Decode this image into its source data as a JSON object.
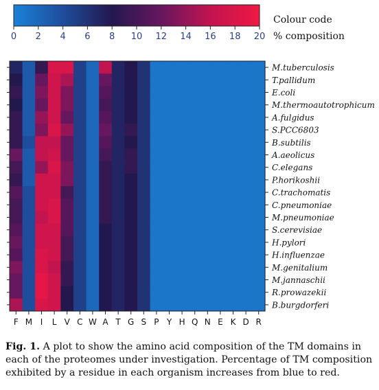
{
  "chart_data": {
    "type": "heatmap",
    "colour_code_label": "Colour code",
    "composition_label": "% composition",
    "colorbar": {
      "ticks": [
        "0",
        "2",
        "4",
        "6",
        "8",
        "10",
        "12",
        "14",
        "16",
        "18",
        "20"
      ],
      "range": [
        0,
        20
      ],
      "colors": [
        "#1a82d8",
        "#1f4d9c",
        "#23184e",
        "#66175e",
        "#c2144f",
        "#f01844"
      ]
    },
    "columns": [
      "F",
      "M",
      "I",
      "L",
      "V",
      "C",
      "W",
      "A",
      "T",
      "G",
      "S",
      "P",
      "Y",
      "H",
      "Q",
      "N",
      "E",
      "K",
      "D",
      "R"
    ],
    "rows": [
      "M.tuberculosis",
      "T.pallidum",
      "E.coli",
      "M.thermoautotrophicum",
      "A.fulgidus",
      "S.PCC6803",
      "B.subtilis",
      "A.aeolicus",
      "C.elegans",
      "P.horikoshii",
      "C.trachomatis",
      "C.pneumoniae",
      "M.pneumoniae",
      "S.cerevisiae",
      "H.pylori",
      "H.influenzae",
      "M.genitalium",
      "M.jannaschii",
      "R.prowazekii",
      "B.burgdorferi"
    ],
    "values": [
      [
        7,
        3,
        9,
        18,
        18,
        5,
        2,
        16,
        7,
        8,
        6,
        1,
        1,
        1,
        1,
        1,
        1,
        1,
        1,
        1
      ],
      [
        8,
        3,
        12,
        17,
        15,
        5,
        2,
        12,
        7,
        8,
        6,
        1,
        1,
        1,
        1,
        1,
        1,
        1,
        1,
        1
      ],
      [
        9,
        3,
        13,
        17,
        13,
        5,
        2,
        11,
        7,
        8,
        6,
        1,
        1,
        1,
        1,
        1,
        1,
        1,
        1,
        1
      ],
      [
        8,
        3,
        12,
        17,
        13,
        5,
        2,
        10,
        7,
        8,
        6,
        1,
        1,
        1,
        1,
        1,
        1,
        1,
        1,
        1
      ],
      [
        9,
        3,
        14,
        17,
        12,
        5,
        2,
        11,
        7,
        8,
        6,
        1,
        1,
        1,
        1,
        1,
        1,
        1,
        1,
        1
      ],
      [
        9,
        3,
        13,
        18,
        14,
        5,
        2,
        12,
        7,
        9,
        6,
        1,
        1,
        1,
        1,
        1,
        1,
        1,
        1,
        1
      ],
      [
        9,
        4,
        16,
        16,
        12,
        5,
        2,
        11,
        7,
        8,
        6,
        1,
        1,
        1,
        1,
        1,
        1,
        1,
        1,
        1
      ],
      [
        12,
        3,
        16,
        17,
        12,
        5,
        2,
        10,
        7,
        9,
        6,
        1,
        1,
        1,
        1,
        1,
        1,
        1,
        1,
        1
      ],
      [
        10,
        3,
        14,
        18,
        13,
        5,
        2,
        9,
        7,
        9,
        6,
        1,
        1,
        1,
        1,
        1,
        1,
        1,
        1,
        1
      ],
      [
        9,
        3,
        17,
        17,
        13,
        5,
        2,
        9,
        7,
        8,
        6,
        1,
        1,
        1,
        1,
        1,
        1,
        1,
        1,
        1
      ],
      [
        11,
        4,
        17,
        17,
        10,
        5,
        2,
        9,
        7,
        8,
        6,
        1,
        1,
        1,
        1,
        1,
        1,
        1,
        1,
        1
      ],
      [
        10,
        4,
        17,
        18,
        11,
        5,
        2,
        9,
        7,
        8,
        6,
        1,
        1,
        1,
        1,
        1,
        1,
        1,
        1,
        1
      ],
      [
        10,
        4,
        16,
        18,
        11,
        5,
        2,
        9,
        7,
        8,
        6,
        1,
        1,
        1,
        1,
        1,
        1,
        1,
        1,
        1
      ],
      [
        11,
        4,
        17,
        17,
        11,
        5,
        2,
        8,
        7,
        8,
        6,
        1,
        1,
        1,
        1,
        1,
        1,
        1,
        1,
        1
      ],
      [
        12,
        4,
        17,
        17,
        10,
        5,
        2,
        8,
        7,
        8,
        6,
        1,
        1,
        1,
        1,
        1,
        1,
        1,
        1,
        1
      ],
      [
        11,
        4,
        18,
        17,
        10,
        5,
        2,
        8,
        7,
        8,
        6,
        1,
        1,
        1,
        1,
        1,
        1,
        1,
        1,
        1
      ],
      [
        13,
        4,
        18,
        16,
        9,
        5,
        2,
        8,
        7,
        8,
        6,
        1,
        1,
        1,
        1,
        1,
        1,
        1,
        1,
        1
      ],
      [
        12,
        4,
        19,
        17,
        9,
        5,
        2,
        8,
        7,
        8,
        6,
        1,
        1,
        1,
        1,
        1,
        1,
        1,
        1,
        1
      ],
      [
        12,
        4,
        19,
        17,
        8,
        5,
        2,
        8,
        7,
        8,
        6,
        1,
        1,
        1,
        1,
        1,
        1,
        1,
        1,
        1
      ],
      [
        15,
        4,
        18,
        17,
        8,
        5,
        2,
        8,
        7,
        8,
        6,
        1,
        1,
        1,
        1,
        1,
        1,
        1,
        1,
        1
      ]
    ]
  },
  "caption": {
    "label": "Fig. 1.",
    "text": "A plot to show the amino acid composition of the TM domains in each of the proteomes under investigation. Percentage of TM composition exhibited by a residue in each organism increases from blue to red."
  }
}
